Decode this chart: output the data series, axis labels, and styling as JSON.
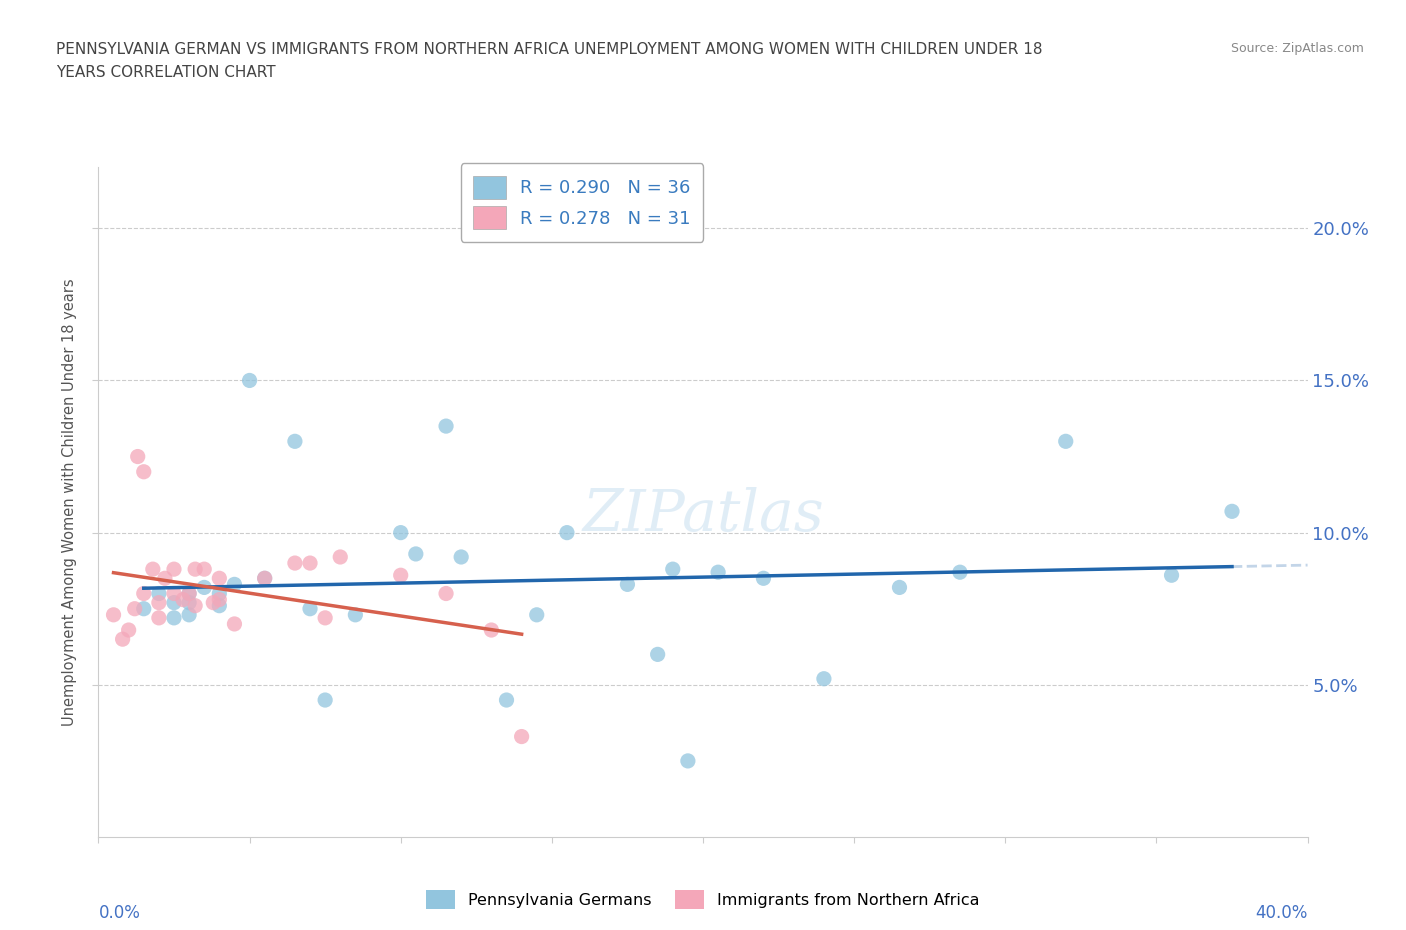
{
  "title_line1": "PENNSYLVANIA GERMAN VS IMMIGRANTS FROM NORTHERN AFRICA UNEMPLOYMENT AMONG WOMEN WITH CHILDREN UNDER 18",
  "title_line2": "YEARS CORRELATION CHART",
  "source": "Source: ZipAtlas.com",
  "ylabel": "Unemployment Among Women with Children Under 18 years",
  "ytick_vals": [
    0.05,
    0.1,
    0.15,
    0.2
  ],
  "xmin": 0.0,
  "xmax": 0.4,
  "ymin": 0.0,
  "ymax": 0.22,
  "legend_R1": "R = 0.290",
  "legend_N1": "N = 36",
  "legend_R2": "R = 0.278",
  "legend_N2": "N = 31",
  "color_blue": "#92c5de",
  "color_pink": "#f4a7b9",
  "trendline_blue": "#2166ac",
  "trendline_pink": "#d6604d",
  "trendline_blue_dashed": "#aac4df",
  "watermark": "ZIPatlas",
  "scatter_blue_x": [
    0.015,
    0.02,
    0.025,
    0.025,
    0.03,
    0.03,
    0.03,
    0.035,
    0.04,
    0.04,
    0.045,
    0.05,
    0.055,
    0.065,
    0.07,
    0.075,
    0.085,
    0.1,
    0.105,
    0.115,
    0.12,
    0.135,
    0.145,
    0.155,
    0.175,
    0.185,
    0.195,
    0.22,
    0.24,
    0.265,
    0.285,
    0.32,
    0.355,
    0.375,
    0.19,
    0.205
  ],
  "scatter_blue_y": [
    0.075,
    0.08,
    0.072,
    0.077,
    0.073,
    0.08,
    0.077,
    0.082,
    0.08,
    0.076,
    0.083,
    0.15,
    0.085,
    0.13,
    0.075,
    0.045,
    0.073,
    0.1,
    0.093,
    0.135,
    0.092,
    0.045,
    0.073,
    0.1,
    0.083,
    0.06,
    0.025,
    0.085,
    0.052,
    0.082,
    0.087,
    0.13,
    0.086,
    0.107,
    0.088,
    0.087
  ],
  "scatter_pink_x": [
    0.005,
    0.008,
    0.01,
    0.012,
    0.013,
    0.015,
    0.015,
    0.018,
    0.02,
    0.02,
    0.022,
    0.025,
    0.025,
    0.028,
    0.03,
    0.032,
    0.032,
    0.035,
    0.038,
    0.04,
    0.04,
    0.045,
    0.055,
    0.065,
    0.07,
    0.075,
    0.08,
    0.1,
    0.115,
    0.13,
    0.14
  ],
  "scatter_pink_y": [
    0.073,
    0.065,
    0.068,
    0.075,
    0.125,
    0.12,
    0.08,
    0.088,
    0.072,
    0.077,
    0.085,
    0.088,
    0.08,
    0.078,
    0.08,
    0.076,
    0.088,
    0.088,
    0.077,
    0.078,
    0.085,
    0.07,
    0.085,
    0.09,
    0.09,
    0.072,
    0.092,
    0.086,
    0.08,
    0.068,
    0.033
  ]
}
